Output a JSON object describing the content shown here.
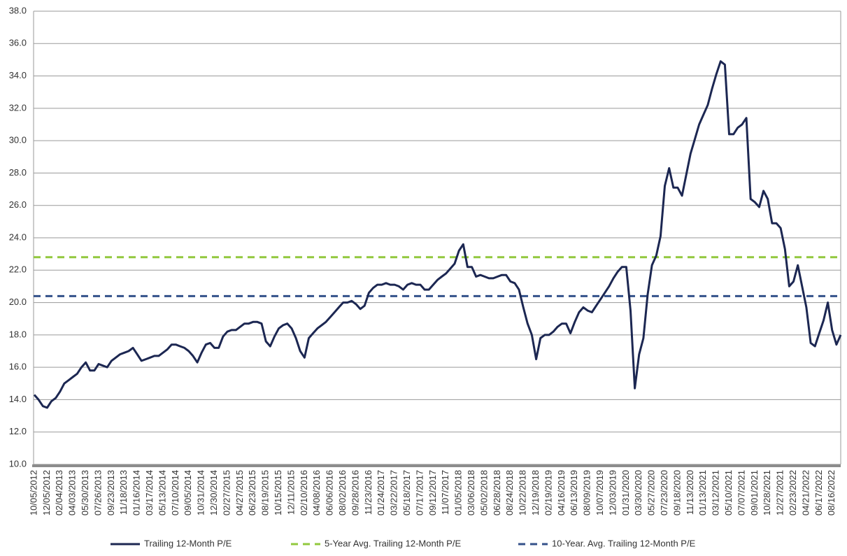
{
  "chart_data": {
    "type": "line",
    "categories": [
      "10/05/2012",
      null,
      null,
      "12/05/2012",
      null,
      null,
      "02/04/2013",
      null,
      null,
      "04/03/2013",
      null,
      null,
      "05/30/2013",
      null,
      null,
      "07/26/2013",
      null,
      null,
      "09/23/2013",
      null,
      null,
      "11/18/2013",
      null,
      null,
      "01/16/2014",
      null,
      null,
      "03/17/2014",
      null,
      null,
      "05/13/2014",
      null,
      null,
      "07/10/2014",
      null,
      null,
      "09/05/2014",
      null,
      null,
      "10/31/2014",
      null,
      null,
      "12/30/2014",
      null,
      null,
      "02/27/2015",
      null,
      null,
      "04/27/2015",
      null,
      null,
      "06/23/2015",
      null,
      null,
      "08/19/2015",
      null,
      null,
      "10/15/2015",
      null,
      null,
      "12/11/2015",
      null,
      null,
      "02/10/2016",
      null,
      null,
      "04/08/2016",
      null,
      null,
      "06/06/2016",
      null,
      null,
      "08/02/2016",
      null,
      null,
      "09/28/2016",
      null,
      null,
      "11/23/2016",
      null,
      null,
      "01/24/2017",
      null,
      null,
      "03/22/2017",
      null,
      null,
      "05/18/2017",
      null,
      null,
      "07/17/2017",
      null,
      null,
      "09/12/2017",
      null,
      null,
      "11/07/2017",
      null,
      null,
      "01/05/2018",
      null,
      null,
      "03/06/2018",
      null,
      null,
      "05/02/2018",
      null,
      null,
      "06/28/2018",
      null,
      null,
      "08/24/2018",
      null,
      null,
      "10/22/2018",
      null,
      null,
      "12/19/2018",
      null,
      null,
      "02/19/2019",
      null,
      null,
      "04/16/2019",
      null,
      null,
      "06/13/2019",
      null,
      null,
      "08/09/2019",
      null,
      null,
      "10/07/2019",
      null,
      null,
      "12/03/2019",
      null,
      null,
      "01/31/2020",
      null,
      null,
      "03/30/2020",
      null,
      null,
      "05/27/2020",
      null,
      null,
      "07/23/2020",
      null,
      null,
      "09/18/2020",
      null,
      null,
      "11/13/2020",
      null,
      null,
      "01/13/2021",
      null,
      null,
      "03/12/2021",
      null,
      null,
      "05/10/2021",
      null,
      null,
      "07/07/2021",
      null,
      null,
      "09/01/2021",
      null,
      null,
      "10/28/2021",
      null,
      null,
      "12/27/2021",
      null,
      null,
      "02/23/2022",
      null,
      null,
      "04/21/2022",
      null,
      null,
      "06/17/2022",
      null,
      null,
      "08/16/2022",
      null,
      null
    ],
    "series": [
      {
        "name": "Trailing 12-Month P/E",
        "color": "#1c2752",
        "values": [
          14.3,
          14.0,
          13.6,
          13.5,
          13.9,
          14.1,
          14.5,
          15.0,
          15.2,
          15.4,
          15.6,
          16.0,
          16.3,
          15.8,
          15.8,
          16.2,
          16.1,
          16.0,
          16.4,
          16.6,
          16.8,
          16.9,
          17.0,
          17.2,
          16.8,
          16.4,
          16.5,
          16.6,
          16.7,
          16.7,
          16.9,
          17.1,
          17.4,
          17.4,
          17.3,
          17.2,
          17.0,
          16.7,
          16.3,
          16.9,
          17.4,
          17.5,
          17.2,
          17.2,
          17.9,
          18.2,
          18.3,
          18.3,
          18.5,
          18.7,
          18.7,
          18.8,
          18.8,
          18.7,
          17.6,
          17.3,
          17.9,
          18.4,
          18.6,
          18.7,
          18.4,
          17.8,
          17.0,
          16.6,
          17.8,
          18.1,
          18.4,
          18.6,
          18.8,
          19.1,
          19.4,
          19.7,
          20.0,
          20.0,
          20.1,
          19.9,
          19.6,
          19.8,
          20.6,
          20.9,
          21.1,
          21.1,
          21.2,
          21.1,
          21.1,
          21.0,
          20.8,
          21.1,
          21.2,
          21.1,
          21.1,
          20.8,
          20.8,
          21.1,
          21.4,
          21.6,
          21.8,
          22.1,
          22.4,
          23.2,
          23.6,
          22.2,
          22.2,
          21.6,
          21.7,
          21.6,
          21.5,
          21.5,
          21.6,
          21.7,
          21.7,
          21.3,
          21.2,
          20.8,
          19.7,
          18.7,
          18.0,
          16.5,
          17.8,
          18.0,
          18.0,
          18.2,
          18.5,
          18.7,
          18.7,
          18.1,
          18.8,
          19.4,
          19.7,
          19.5,
          19.4,
          19.8,
          20.2,
          20.6,
          21.0,
          21.5,
          21.9,
          22.2,
          22.2,
          19.5,
          14.7,
          16.8,
          17.8,
          20.5,
          22.3,
          22.9,
          24.1,
          27.2,
          28.3,
          27.1,
          27.1,
          26.6,
          27.9,
          29.2,
          30.1,
          31.0,
          31.6,
          32.2,
          33.2,
          34.1,
          34.9,
          34.7,
          30.4,
          30.4,
          30.8,
          31.0,
          31.4,
          26.4,
          26.2,
          25.9,
          26.9,
          26.4,
          24.9,
          24.9,
          24.6,
          23.3,
          21.0,
          21.3,
          22.3,
          21.0,
          19.7,
          17.5,
          17.3,
          18.1,
          18.9,
          20.0,
          18.3,
          17.4,
          18.0
        ]
      }
    ],
    "reference_lines": [
      {
        "name": "5-Year Avg. Trailing 12-Month P/E",
        "color": "#92c83e",
        "value": 22.8
      },
      {
        "name": "10-Year. Avg. Trailing 12-Month P/E",
        "color": "#34528a",
        "value": 20.4
      }
    ],
    "ylim": [
      10,
      38
    ],
    "yticks": [
      {
        "value": 10,
        "label": "10.0"
      },
      {
        "value": 12,
        "label": "12.0"
      },
      {
        "value": 14,
        "label": "14.0"
      },
      {
        "value": 16,
        "label": "16.0"
      },
      {
        "value": 18,
        "label": "18.0"
      },
      {
        "value": 20,
        "label": "20.0"
      },
      {
        "value": 22,
        "label": "22.0"
      },
      {
        "value": 24,
        "label": "24.0"
      },
      {
        "value": 26,
        "label": "26.0"
      },
      {
        "value": 28,
        "label": "28.0"
      },
      {
        "value": 30,
        "label": "30.0"
      },
      {
        "value": 32,
        "label": "32.0"
      },
      {
        "value": 34,
        "label": "34.0"
      },
      {
        "value": 36,
        "label": "36.0"
      },
      {
        "value": 38,
        "label": "38.0"
      }
    ],
    "grid": true
  }
}
